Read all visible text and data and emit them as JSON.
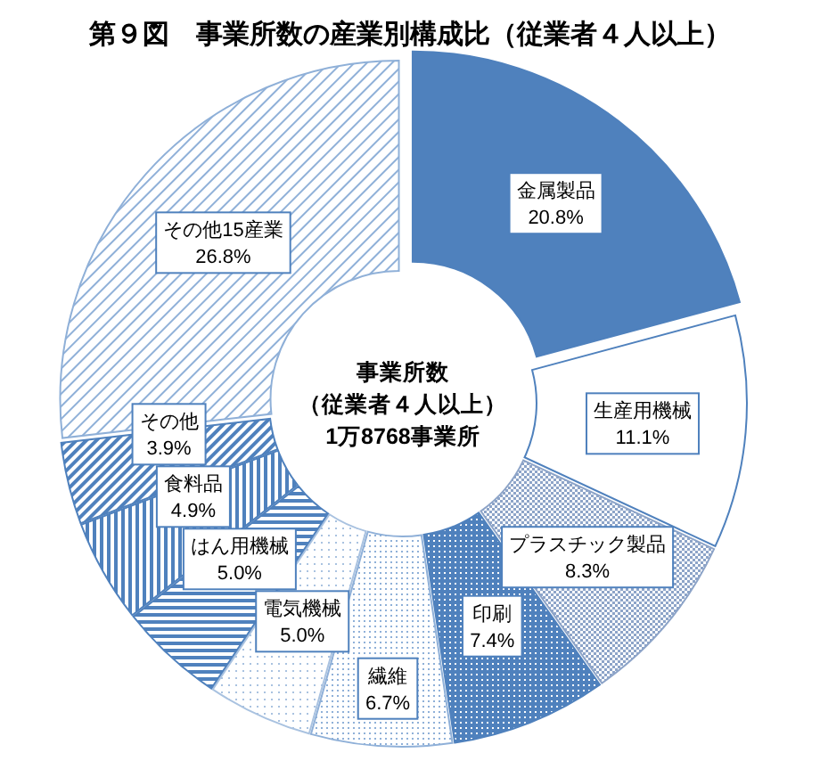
{
  "chart_data": {
    "type": "donut",
    "title": "第９図　事業所数の産業別構成比（従業者４人以上）",
    "categories": [
      "金属製品",
      "生産用機械",
      "プラスチック製品",
      "印刷",
      "繊維",
      "電気機械",
      "はん用機械",
      "食料品",
      "その他",
      "その他15産業"
    ],
    "values": [
      20.8,
      11.1,
      8.3,
      7.4,
      6.7,
      5.0,
      5.0,
      4.9,
      3.9,
      26.8
    ],
    "value_labels": [
      "20.8%",
      "11.1%",
      "8.3%",
      "7.4%",
      "6.7%",
      "5.0%",
      "5.0%",
      "4.9%",
      "3.9%",
      "26.8%"
    ],
    "colors": [
      "#4f81bd",
      "#ffffff",
      "#8da4c8",
      "#4f81bd",
      "#8fb0d8",
      "#a9c2e0",
      "#4f81bd",
      "#4f81bd",
      "#4f81bd",
      "#8fb0d8"
    ],
    "annotations": [
      "事業所数",
      "（従業者４人以上）",
      "1万8768事業所"
    ]
  }
}
